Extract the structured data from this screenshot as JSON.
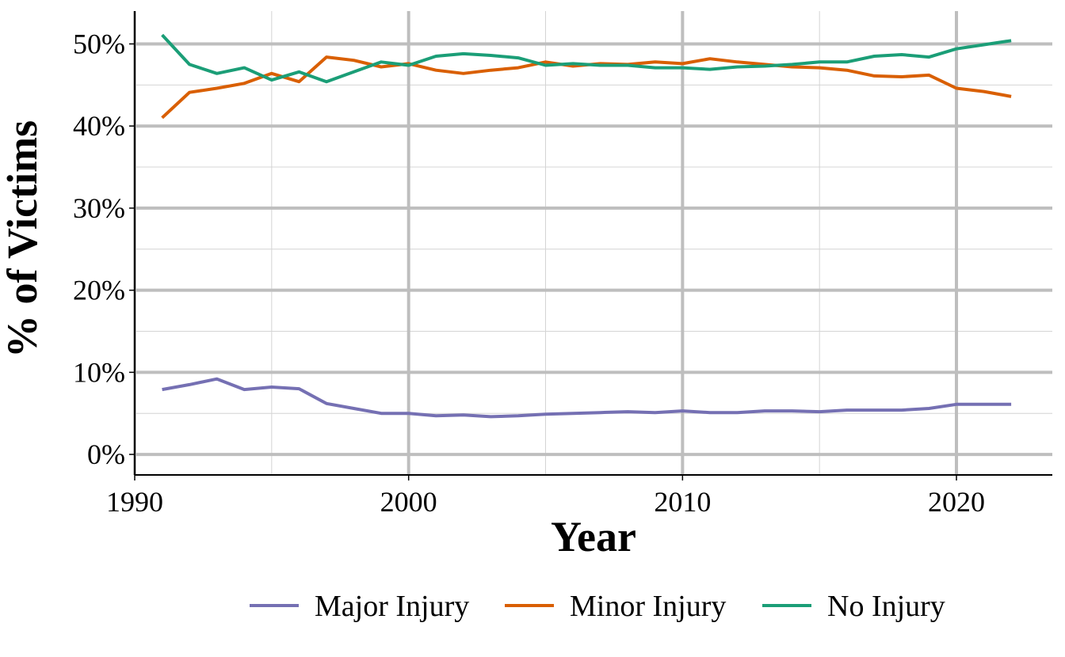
{
  "chart_data": {
    "type": "line",
    "xlabel": "Year",
    "ylabel": "% of Victims",
    "xlim": [
      1990,
      2023.5
    ],
    "ylim": [
      -2.5,
      54
    ],
    "x_ticks": [
      1990,
      2000,
      2010,
      2020
    ],
    "x_tick_labels": [
      "1990",
      "2000",
      "2010",
      "2020"
    ],
    "y_ticks": [
      0,
      10,
      20,
      30,
      40,
      50
    ],
    "y_tick_labels": [
      "0%",
      "10%",
      "20%",
      "30%",
      "40%",
      "50%"
    ],
    "grid": true,
    "legend_position": "bottom",
    "x": [
      1991,
      1992,
      1993,
      1994,
      1995,
      1996,
      1997,
      1998,
      1999,
      2000,
      2001,
      2002,
      2003,
      2004,
      2005,
      2006,
      2007,
      2008,
      2009,
      2010,
      2011,
      2012,
      2013,
      2014,
      2015,
      2016,
      2017,
      2018,
      2019,
      2020,
      2021,
      2022
    ],
    "series": [
      {
        "name": "Major Injury",
        "color": "#7570b3",
        "values": [
          7.9,
          8.5,
          9.2,
          7.9,
          8.2,
          8.0,
          6.2,
          5.6,
          5.0,
          5.0,
          4.7,
          4.8,
          4.6,
          4.7,
          4.9,
          5.0,
          5.1,
          5.2,
          5.1,
          5.3,
          5.1,
          5.1,
          5.3,
          5.3,
          5.2,
          5.4,
          5.4,
          5.4,
          5.6,
          6.1,
          6.1,
          6.1
        ]
      },
      {
        "name": "Minor Injury",
        "color": "#d95f02",
        "values": [
          41.0,
          44.1,
          44.6,
          45.2,
          46.4,
          45.4,
          48.4,
          48.0,
          47.2,
          47.6,
          46.8,
          46.4,
          46.8,
          47.1,
          47.8,
          47.3,
          47.6,
          47.5,
          47.8,
          47.6,
          48.2,
          47.8,
          47.5,
          47.2,
          47.1,
          46.8,
          46.1,
          46.0,
          46.2,
          44.6,
          44.2,
          43.6
        ]
      },
      {
        "name": "No Injury",
        "color": "#1b9e77",
        "values": [
          51.1,
          47.5,
          46.4,
          47.1,
          45.6,
          46.6,
          45.4,
          46.6,
          47.8,
          47.4,
          48.5,
          48.8,
          48.6,
          48.3,
          47.4,
          47.6,
          47.4,
          47.4,
          47.1,
          47.1,
          46.9,
          47.2,
          47.3,
          47.5,
          47.8,
          47.8,
          48.5,
          48.7,
          48.4,
          49.4,
          49.9,
          50.4
        ]
      }
    ]
  }
}
